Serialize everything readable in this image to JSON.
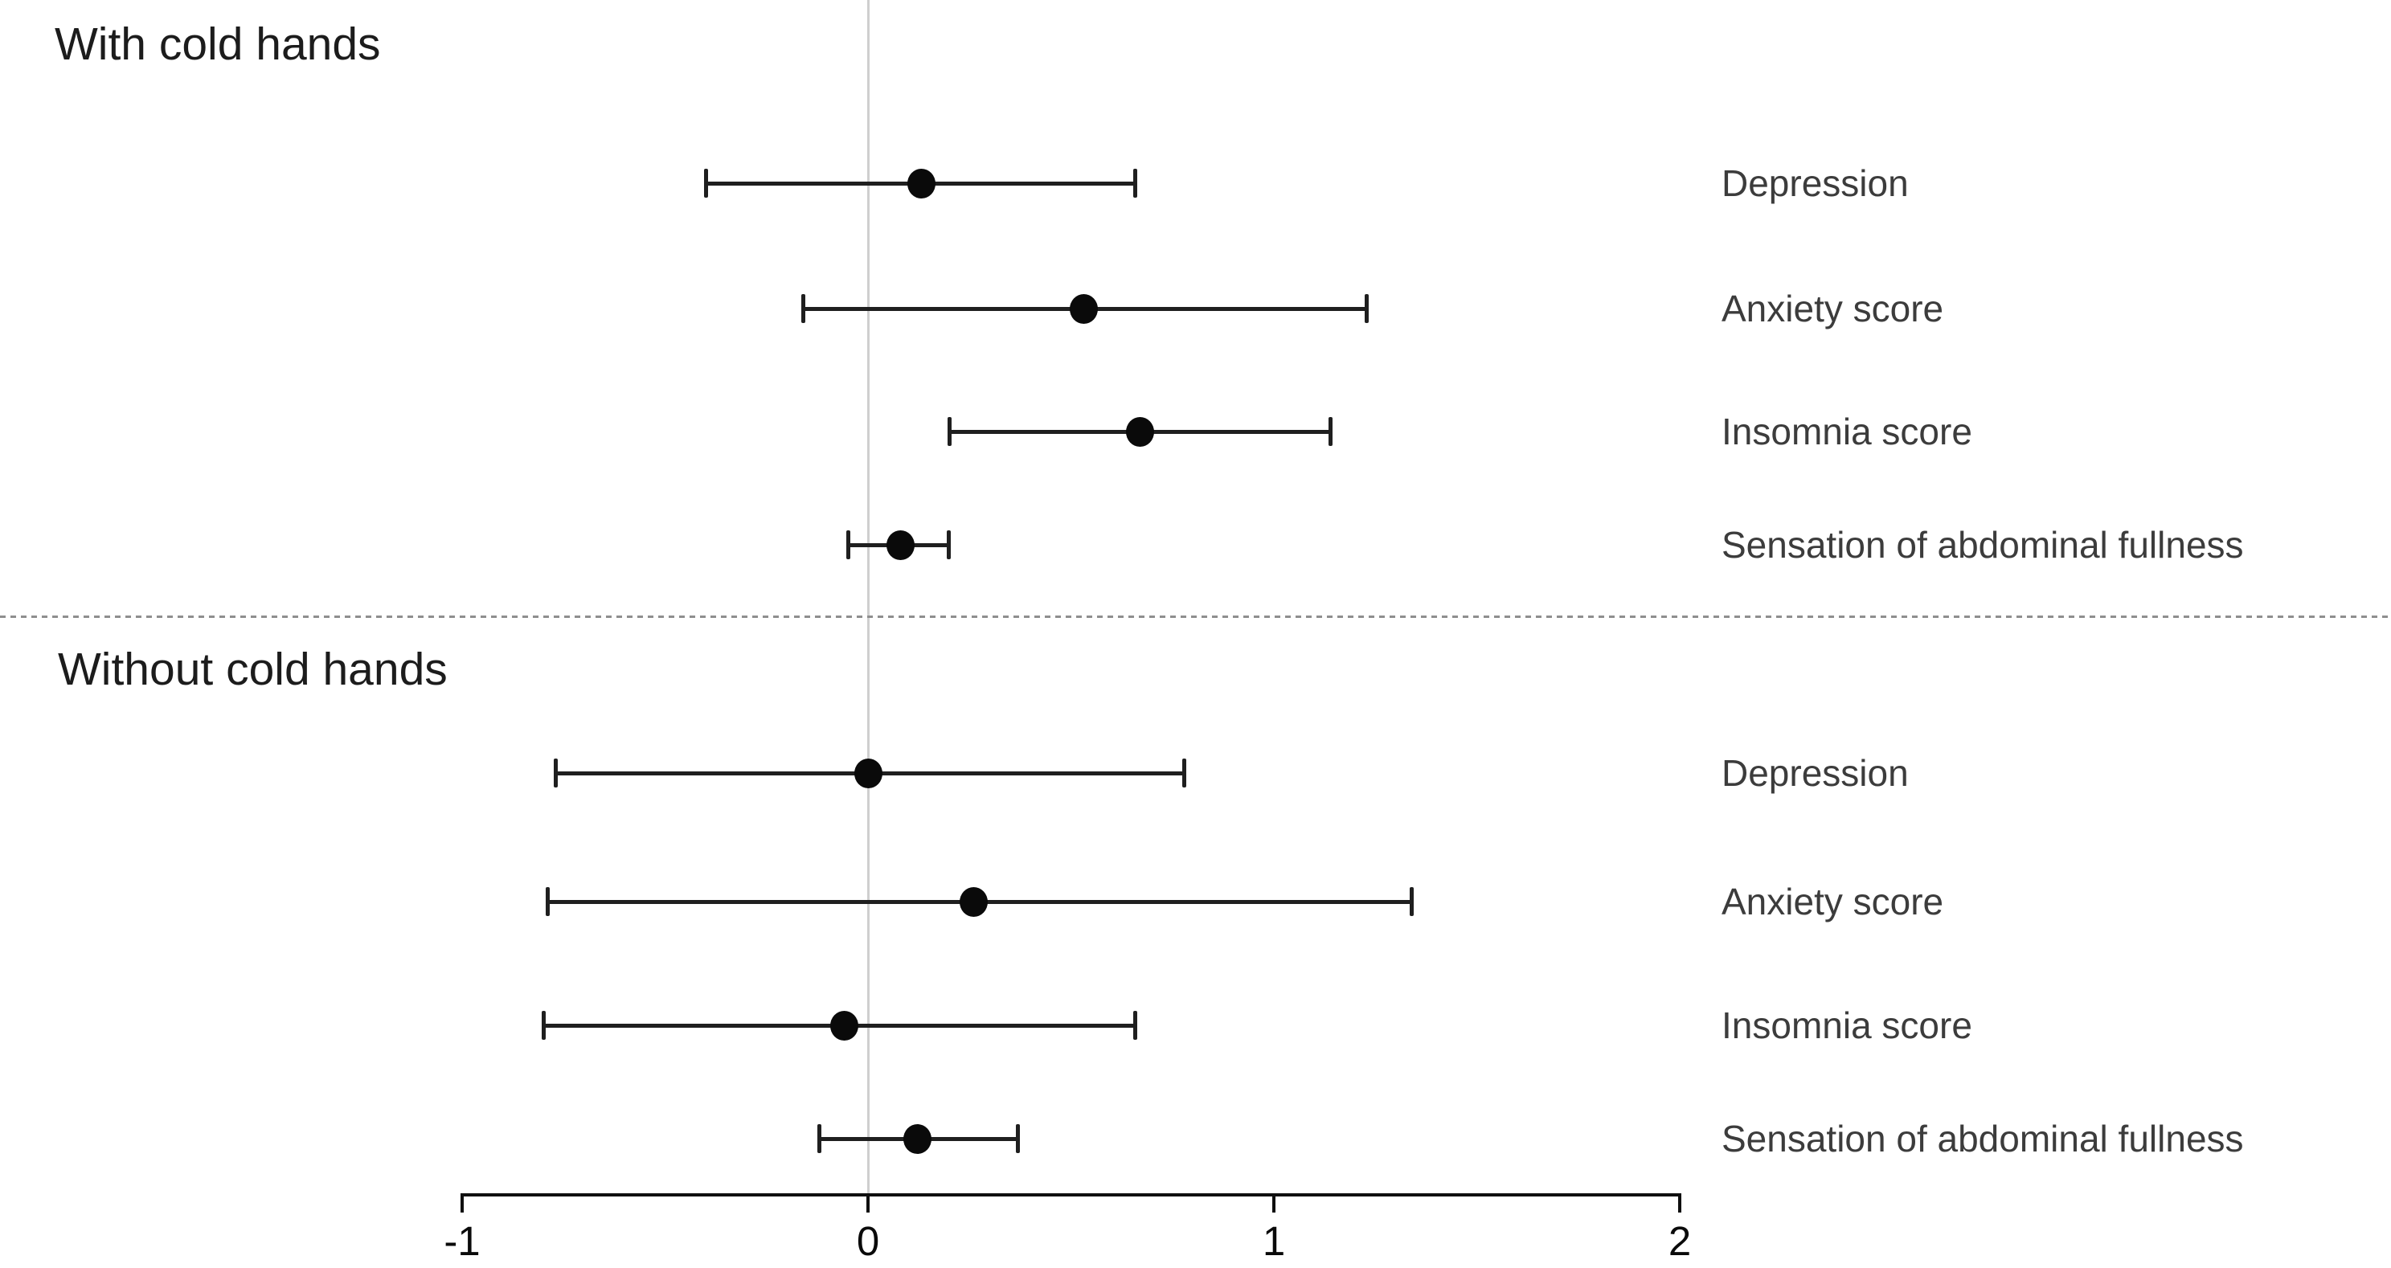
{
  "figure": {
    "background": "#ffffff"
  },
  "chart_data": {
    "type": "scatter",
    "subtype": "forest-plot-with-error-bars",
    "title": "",
    "xlabel": "",
    "ylabel": "",
    "xlim": [
      -1,
      2
    ],
    "grid": "off",
    "zero_reference_line": 0,
    "x_axis": {
      "ticks": [
        {
          "value": -1,
          "label": "-1"
        },
        {
          "value": 0,
          "label": "0"
        },
        {
          "value": 1,
          "label": "1"
        },
        {
          "value": 2,
          "label": "2"
        }
      ]
    },
    "sections": [
      {
        "title": "With cold hands",
        "rows": [
          {
            "label": "Depression",
            "value": 0.13,
            "ci_low": -0.4,
            "ci_high": 0.66
          },
          {
            "label": "Anxiety score",
            "value": 0.53,
            "ci_low": -0.16,
            "ci_high": 1.23
          },
          {
            "label": "Insomnia score",
            "value": 0.67,
            "ci_low": 0.2,
            "ci_high": 1.14
          },
          {
            "label": "Sensation of abdominal fullness",
            "value": 0.08,
            "ci_low": -0.05,
            "ci_high": 0.2
          }
        ]
      },
      {
        "title": "Without cold hands",
        "rows": [
          {
            "label": "Depression",
            "value": 0.0,
            "ci_low": -0.77,
            "ci_high": 0.78
          },
          {
            "label": "Anxiety score",
            "value": 0.26,
            "ci_low": -0.79,
            "ci_high": 1.34
          },
          {
            "label": "Insomnia score",
            "value": -0.06,
            "ci_low": -0.8,
            "ci_high": 0.66
          },
          {
            "label": "Sensation of abdominal fullness",
            "value": 0.12,
            "ci_low": -0.12,
            "ci_high": 0.37
          }
        ]
      }
    ],
    "colors": {
      "point": "#0a0a0a",
      "error_bar": "#1f1f1f",
      "zero_line": "#cfcfcf",
      "section_divider": "#8f8f8f",
      "row_label_text": "#3c3c3c",
      "axis": "#0f0f0f",
      "background": "#ffffff"
    }
  }
}
